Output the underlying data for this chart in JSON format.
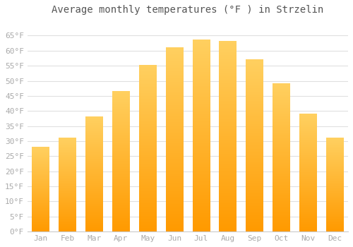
{
  "title": "Average monthly temperatures (°F ) in Strzelin",
  "months": [
    "Jan",
    "Feb",
    "Mar",
    "Apr",
    "May",
    "Jun",
    "Jul",
    "Aug",
    "Sep",
    "Oct",
    "Nov",
    "Dec"
  ],
  "values": [
    28,
    31,
    38,
    46.5,
    55,
    61,
    63.5,
    63,
    57,
    49,
    39,
    31
  ],
  "bar_color": "#FFA500",
  "bar_gradient_top": "#FFB833",
  "bar_gradient_bottom": "#FF9500",
  "ylim": [
    0,
    70
  ],
  "yticks": [
    0,
    5,
    10,
    15,
    20,
    25,
    30,
    35,
    40,
    45,
    50,
    55,
    60,
    65
  ],
  "ytick_labels": [
    "0°F",
    "5°F",
    "10°F",
    "15°F",
    "20°F",
    "25°F",
    "30°F",
    "35°F",
    "40°F",
    "45°F",
    "50°F",
    "55°F",
    "60°F",
    "65°F"
  ],
  "background_color": "#ffffff",
  "grid_color": "#e0e0e0",
  "title_fontsize": 10,
  "tick_fontsize": 8,
  "tick_color": "#aaaaaa",
  "spine_color": "#cccccc"
}
